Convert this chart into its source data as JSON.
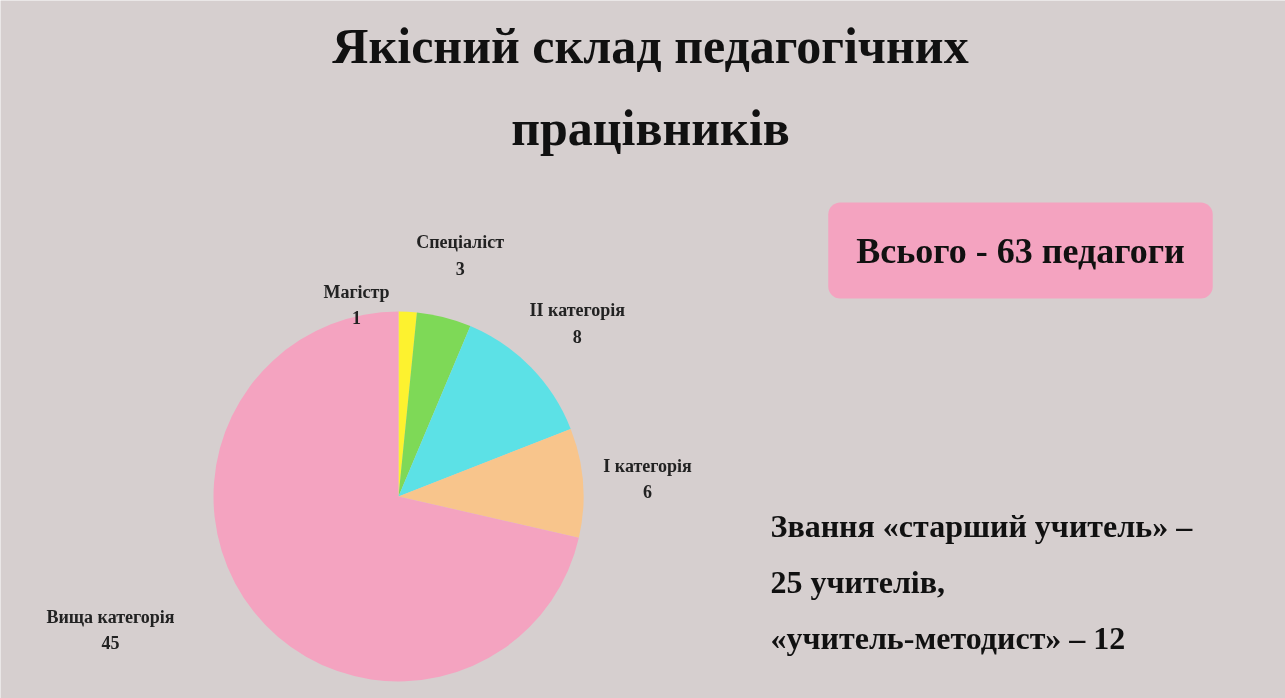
{
  "chart_data": {
    "type": "pie",
    "title": "Якісний склад педагогічних\nпрацівників",
    "categories": [
      "Магістр",
      "Спеціаліст",
      "II категорія",
      "I категорія",
      "Вища категорія"
    ],
    "values": [
      1,
      3,
      8,
      6,
      45
    ],
    "colors": [
      "#fdf22f",
      "#7ed957",
      "#5ce1e6",
      "#f8c58c",
      "#f4a3c0"
    ],
    "data_labels": true,
    "annotations": [
      "Всього - 63 педагоги",
      "Звання «старший учитель» –\n25 учителів,\n«учитель-методист» – 12"
    ]
  }
}
